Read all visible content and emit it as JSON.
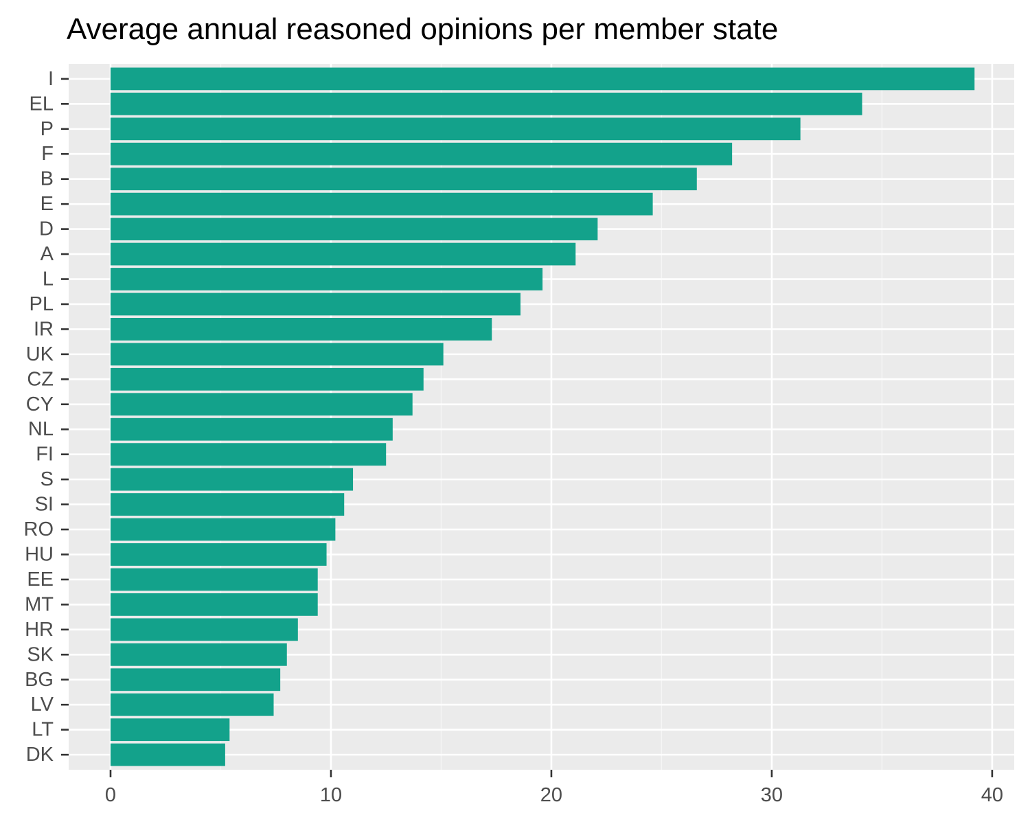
{
  "chart_data": {
    "type": "bar",
    "orientation": "horizontal",
    "title": "Average annual reasoned opinions per member state",
    "xlabel": "",
    "ylabel": "",
    "xlim": [
      -1.9,
      41.0
    ],
    "x_ticks": [
      0,
      10,
      20,
      30,
      40
    ],
    "grid": true,
    "legend": "none",
    "categories": [
      "I",
      "EL",
      "P",
      "F",
      "B",
      "E",
      "D",
      "A",
      "L",
      "PL",
      "IR",
      "UK",
      "CZ",
      "CY",
      "NL",
      "FI",
      "S",
      "SI",
      "RO",
      "HU",
      "EE",
      "MT",
      "HR",
      "SK",
      "BG",
      "LV",
      "LT",
      "DK"
    ],
    "values": [
      39.2,
      34.1,
      31.3,
      28.2,
      26.6,
      24.6,
      22.1,
      21.1,
      19.6,
      18.6,
      17.3,
      15.1,
      14.2,
      13.7,
      12.8,
      12.5,
      11.0,
      10.6,
      10.2,
      9.8,
      9.4,
      9.4,
      8.5,
      8.0,
      7.7,
      7.4,
      5.4,
      5.2
    ],
    "colors": {
      "bar": "#13a28b",
      "panel": "#ebebeb",
      "grid_major": "#ffffff",
      "grid_minor": "#f5f5f5",
      "tick_text": "#4d4d4d",
      "tick_mark": "#333333"
    }
  }
}
